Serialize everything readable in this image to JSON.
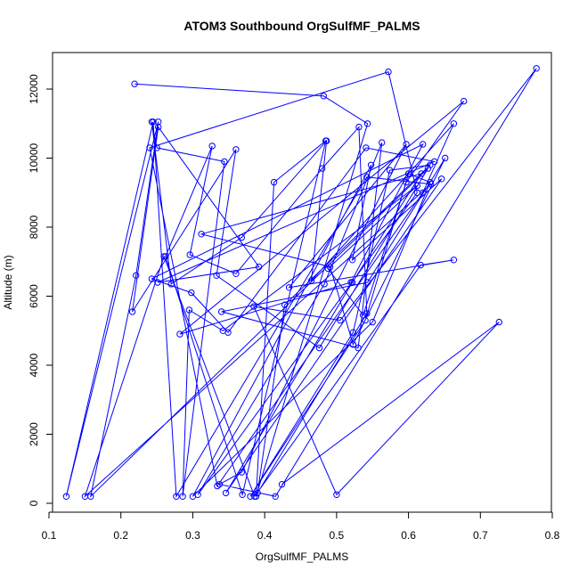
{
  "chart_data": {
    "type": "line",
    "title": "ATOM3 Southbound OrgSulfMF_PALMS",
    "xlabel": "OrgSulfMF_PALMS",
    "ylabel": "Altitude (m)",
    "xlim": [
      0.1,
      0.8
    ],
    "ylim": [
      0,
      12000
    ],
    "x_ticks": [
      "0.1",
      "0.2",
      "0.3",
      "0.4",
      "0.5",
      "0.6",
      "0.7",
      "0.8"
    ],
    "y_ticks": [
      "0",
      "2000",
      "4000",
      "6000",
      "8000",
      "10000",
      "12000"
    ],
    "grid": false,
    "marker": "open-circle",
    "color": "#0000ff",
    "series": [
      {
        "x": [
          0.219,
          0.482,
          0.543,
          0.388,
          0.413,
          0.485,
          0.369,
          0.262,
          0.327,
          0.296,
          0.36,
          0.48,
          0.531,
          0.542,
          0.39,
          0.428,
          0.63,
          0.574,
          0.523,
          0.38,
          0.54,
          0.6,
          0.63,
          0.55,
          0.3,
          0.548,
          0.522,
          0.646,
          0.346,
          0.522,
          0.618,
          0.312,
          0.491,
          0.523,
          0.651,
          0.543,
          0.34,
          0.53,
          0.563,
          0.483,
          0.307,
          0.612,
          0.572,
          0.24,
          0.334,
          0.62,
          0.663,
          0.465,
          0.486,
          0.368,
          0.27,
          0.243,
          0.25,
          0.344,
          0.286,
          0.295,
          0.342,
          0.612,
          0.488,
          0.537,
          0.597,
          0.677,
          0.282,
          0.52,
          0.62,
          0.243,
          0.298,
          0.349,
          0.541,
          0.636,
          0.251,
          0.392,
          0.252,
          0.216,
          0.36,
          0.333,
          0.476,
          0.627,
          0.158,
          0.221,
          0.252,
          0.124,
          0.245,
          0.277,
          0.542,
          0.631,
          0.15,
          0.26,
          0.386,
          0.617,
          0.663,
          0.434,
          0.597,
          0.368,
          0.337,
          0.415,
          0.778,
          0.505,
          0.385,
          0.5,
          0.726,
          0.424
        ],
        "y": [
          12150,
          11800,
          11000,
          200,
          9300,
          10500,
          250,
          7150,
          10350,
          7200,
          6650,
          9700,
          10900,
          5500,
          300,
          5750,
          9800,
          9650,
          4950,
          200,
          5300,
          9550,
          9300,
          5250,
          200,
          9800,
          7050,
          9400,
          300,
          6400,
          9550,
          7800,
          6850,
          4600,
          10000,
          6400,
          5550,
          4500,
          10450,
          6350,
          250,
          9000,
          12500,
          10300,
          500,
          9000,
          11000,
          6450,
          10500,
          7700,
          6350,
          11050,
          10300,
          9900,
          200,
          5600,
          5000,
          9200,
          6800,
          5450,
          9300,
          11650,
          4900,
          6400,
          10400,
          6500,
          6100,
          4950,
          10300,
          9900,
          6400,
          6850,
          10900,
          5550,
          10250,
          6600,
          4500,
          9700,
          200,
          6600,
          11050,
          200,
          11050,
          200,
          9450,
          9250,
          200,
          7150,
          200,
          6900,
          7050,
          6250,
          10400,
          900,
          550,
          200,
          12600,
          5300,
          5700,
          250,
          5250,
          550
        ]
      }
    ]
  }
}
